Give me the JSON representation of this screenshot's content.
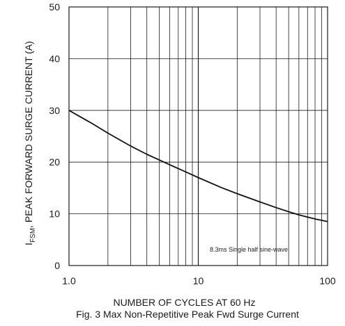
{
  "chart_data": {
    "type": "line",
    "x_scale": "log",
    "grid": true,
    "xlabel": "NUMBER OF CYCLES AT 60 Hz",
    "ylabel_sub": "FSM",
    "ylabel_main": "I",
    "ylabel_rest": ", PEAK FORWARD SURGE CURRENT (A)",
    "xlim": [
      1,
      100
    ],
    "ylim": [
      0,
      50
    ],
    "x_ticks": [
      {
        "value": 1,
        "label": "1.0"
      },
      {
        "value": 10,
        "label": "10"
      },
      {
        "value": 100,
        "label": "100"
      }
    ],
    "y_ticks": [
      {
        "value": 0,
        "label": "0"
      },
      {
        "value": 10,
        "label": "10"
      },
      {
        "value": 20,
        "label": "20"
      },
      {
        "value": 30,
        "label": "30"
      },
      {
        "value": 40,
        "label": "40"
      },
      {
        "value": 50,
        "label": "50"
      }
    ],
    "series": [
      {
        "x": [
          1,
          1.5,
          2,
          3,
          4,
          5,
          6,
          8,
          10,
          15,
          20,
          30,
          40,
          50,
          60,
          80,
          100
        ],
        "y": [
          30,
          27.5,
          25.6,
          23.1,
          21.5,
          20.4,
          19.5,
          18.1,
          17.0,
          15.1,
          13.9,
          12.3,
          11.2,
          10.4,
          9.8,
          9.0,
          8.5
        ]
      }
    ],
    "annotation": "8.3ms Single half sine-wave",
    "caption": "Fig. 3  Max Non-Repetitive Peak Fwd Surge Current"
  }
}
